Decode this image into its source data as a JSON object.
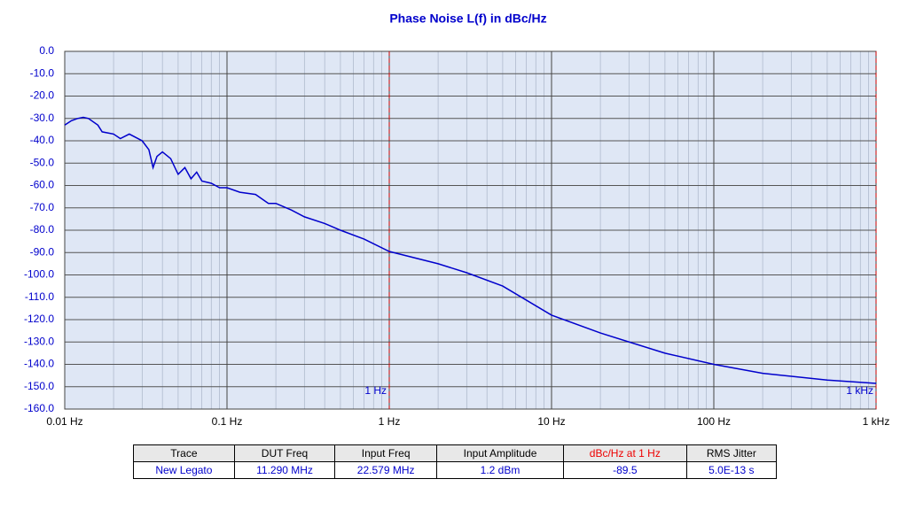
{
  "chart_data": {
    "type": "line",
    "title": "Phase Noise L(f) in dBc/Hz",
    "x": [
      0.01,
      0.011,
      0.012,
      0.013,
      0.014,
      0.016,
      0.017,
      0.02,
      0.022,
      0.025,
      0.03,
      0.033,
      0.035,
      0.037,
      0.04,
      0.045,
      0.05,
      0.055,
      0.06,
      0.065,
      0.07,
      0.08,
      0.09,
      0.1,
      0.12,
      0.15,
      0.18,
      0.2,
      0.25,
      0.3,
      0.4,
      0.5,
      0.7,
      1,
      2,
      3,
      5,
      10,
      20,
      50,
      100,
      200,
      500,
      1000
    ],
    "series": [
      {
        "name": "New Legato",
        "color": "#0000cc",
        "values": [
          -33,
          -31,
          -30,
          -29.5,
          -30,
          -33,
          -36,
          -37,
          -39,
          -37,
          -40,
          -44,
          -52,
          -47,
          -45,
          -48,
          -55,
          -52,
          -57,
          -54,
          -58,
          -59,
          -61,
          -61,
          -63,
          -64,
          -68,
          -68,
          -71,
          -74,
          -77,
          -80,
          -84,
          -89.5,
          -95,
          -99,
          -105,
          -118,
          -126,
          -135,
          -140,
          -144,
          -147,
          -148.5
        ]
      }
    ],
    "xlog": true,
    "xlim": [
      0.01,
      1000
    ],
    "xticks": [
      {
        "value": 0.01,
        "label": "0.01 Hz"
      },
      {
        "value": 0.1,
        "label": "0.1 Hz"
      },
      {
        "value": 1,
        "label": "1 Hz"
      },
      {
        "value": 10,
        "label": "10 Hz"
      },
      {
        "value": 100,
        "label": "100 Hz"
      },
      {
        "value": 1000,
        "label": "1 kHz"
      }
    ],
    "ylim": [
      -160,
      0
    ],
    "yticks": [
      {
        "value": 0,
        "label": "0.0"
      },
      {
        "value": -10,
        "label": "-10.0"
      },
      {
        "value": -20,
        "label": "-20.0"
      },
      {
        "value": -30,
        "label": "-30.0"
      },
      {
        "value": -40,
        "label": "-40.0"
      },
      {
        "value": -50,
        "label": "-50.0"
      },
      {
        "value": -60,
        "label": "-60.0"
      },
      {
        "value": -70,
        "label": "-70.0"
      },
      {
        "value": -80,
        "label": "-80.0"
      },
      {
        "value": -90,
        "label": "-90.0"
      },
      {
        "value": -100,
        "label": "-100.0"
      },
      {
        "value": -110,
        "label": "-110.0"
      },
      {
        "value": -120,
        "label": "-120.0"
      },
      {
        "value": -130,
        "label": "-130.0"
      },
      {
        "value": -140,
        "label": "-140.0"
      },
      {
        "value": -150,
        "label": "-150.0"
      },
      {
        "value": -160,
        "label": "-160.0"
      }
    ],
    "grid": true,
    "minor_grid": true,
    "markers": [
      {
        "x": 1,
        "label": "1 Hz",
        "color": "#cc0000"
      },
      {
        "x": 1000,
        "label": "1 kHz",
        "color": "#cc0000"
      }
    ]
  },
  "table": {
    "columns": [
      "Trace",
      "DUT Freq",
      "Input Freq",
      "Input Amplitude",
      "dBc/Hz at 1 Hz",
      "RMS Jitter"
    ],
    "rows": [
      [
        "New Legato",
        "11.290 MHz",
        "22.579 MHz",
        "1.2 dBm",
        "-89.5",
        "5.0E-13 s"
      ]
    ],
    "highlight": {
      "column": 4,
      "color": "#ee0000"
    }
  }
}
